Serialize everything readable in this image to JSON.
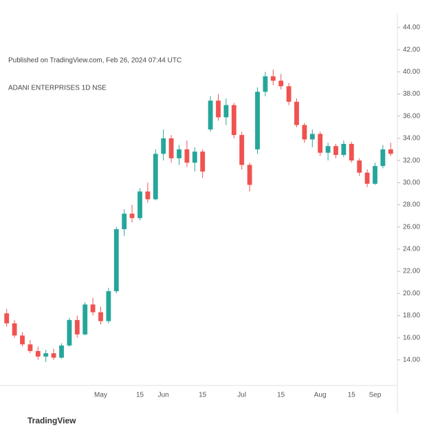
{
  "chart_data": {
    "type": "candlestick",
    "symbol": "ADANI ENTERPRISES 1D NSE",
    "subtitle": "Published on TradingView.com, Feb 26, 2024 07:44 UTC",
    "brand": "TradingView",
    "up_color": "#26a69a",
    "down_color": "#ef5350",
    "categories": [
      null,
      null,
      null,
      null,
      null,
      null,
      null,
      null,
      null,
      null,
      null,
      null,
      "May",
      null,
      null,
      null,
      null,
      "15",
      null,
      null,
      "Jun",
      null,
      null,
      null,
      null,
      "15",
      null,
      null,
      null,
      null,
      "Jul",
      null,
      null,
      null,
      null,
      "15",
      null,
      null,
      null,
      null,
      "Aug",
      null,
      null,
      null,
      "15",
      null,
      null,
      "Sep",
      null,
      null
    ],
    "open": [
      18.2,
      17.3,
      16.2,
      15.4,
      14.8,
      14.3,
      14.6,
      14.2,
      15.3,
      17.6,
      16.3,
      19.0,
      18.3,
      17.5,
      20.2,
      25.8,
      27.2,
      26.8,
      29.2,
      28.5,
      32.6,
      34.0,
      32.2,
      33.0,
      31.8,
      32.8,
      34.8,
      37.4,
      35.9,
      37.0,
      34.3,
      31.6,
      33.0,
      38.2,
      39.6,
      39.2,
      38.7,
      37.3,
      35.2,
      33.9,
      34.4,
      32.7,
      33.3,
      32.5,
      33.5,
      32.0,
      30.9,
      29.9,
      31.5,
      33.0
    ],
    "high": [
      18.6,
      17.6,
      16.5,
      15.8,
      15.2,
      14.9,
      15.0,
      15.5,
      17.8,
      18.0,
      19.2,
      19.6,
      18.8,
      20.5,
      26.0,
      27.6,
      28.0,
      29.5,
      30.0,
      33.0,
      34.8,
      34.3,
      33.4,
      33.8,
      33.2,
      33.0,
      37.8,
      38.0,
      37.6,
      37.2,
      34.6,
      31.8,
      38.6,
      40.0,
      40.2,
      39.8,
      39.0,
      37.6,
      35.4,
      34.8,
      34.6,
      33.6,
      33.5,
      33.8,
      33.7,
      32.2,
      31.2,
      31.8,
      33.4,
      33.6
    ],
    "low": [
      17.0,
      16.0,
      15.2,
      14.6,
      14.0,
      13.8,
      14.0,
      14.1,
      15.2,
      16.0,
      16.2,
      18.0,
      17.2,
      17.3,
      20.0,
      25.2,
      26.4,
      26.6,
      28.2,
      28.4,
      32.0,
      31.8,
      31.6,
      31.4,
      31.0,
      30.4,
      34.6,
      35.6,
      35.2,
      34.0,
      31.2,
      29.2,
      32.6,
      37.8,
      38.8,
      38.4,
      37.0,
      35.0,
      33.6,
      33.2,
      32.4,
      32.0,
      32.2,
      32.3,
      31.8,
      30.6,
      29.6,
      29.8,
      31.3,
      32.4
    ],
    "close": [
      17.3,
      16.2,
      15.4,
      14.8,
      14.3,
      14.6,
      14.2,
      15.3,
      17.6,
      16.3,
      19.0,
      18.3,
      17.5,
      20.2,
      25.8,
      27.2,
      26.8,
      29.2,
      28.5,
      32.6,
      34.0,
      32.2,
      33.0,
      31.8,
      32.8,
      31.0,
      37.4,
      35.9,
      37.0,
      34.3,
      31.6,
      29.8,
      38.2,
      39.6,
      39.2,
      38.7,
      37.3,
      35.2,
      33.9,
      34.4,
      32.7,
      33.3,
      32.5,
      33.5,
      32.0,
      30.9,
      29.9,
      31.5,
      33.0,
      32.6
    ],
    "ylim": [
      12,
      44
    ],
    "yticks": [
      {
        "value": 14,
        "label": "14.00"
      },
      {
        "value": 16,
        "label": "16.00"
      },
      {
        "value": 18,
        "label": "18.00"
      },
      {
        "value": 20,
        "label": "20.00"
      },
      {
        "value": 22,
        "label": "22.00"
      },
      {
        "value": 24,
        "label": "24.00"
      },
      {
        "value": 26,
        "label": "26.00"
      },
      {
        "value": 28,
        "label": "28.00"
      },
      {
        "value": 30,
        "label": "30.00"
      },
      {
        "value": 32,
        "label": "32.00"
      },
      {
        "value": 34,
        "label": "34.00"
      },
      {
        "value": 36,
        "label": "36.00"
      },
      {
        "value": 38,
        "label": "38.00"
      },
      {
        "value": 40,
        "label": "40.00"
      },
      {
        "value": 42,
        "label": "42.00"
      },
      {
        "value": 44,
        "label": "44.00"
      }
    ],
    "grid": false
  }
}
